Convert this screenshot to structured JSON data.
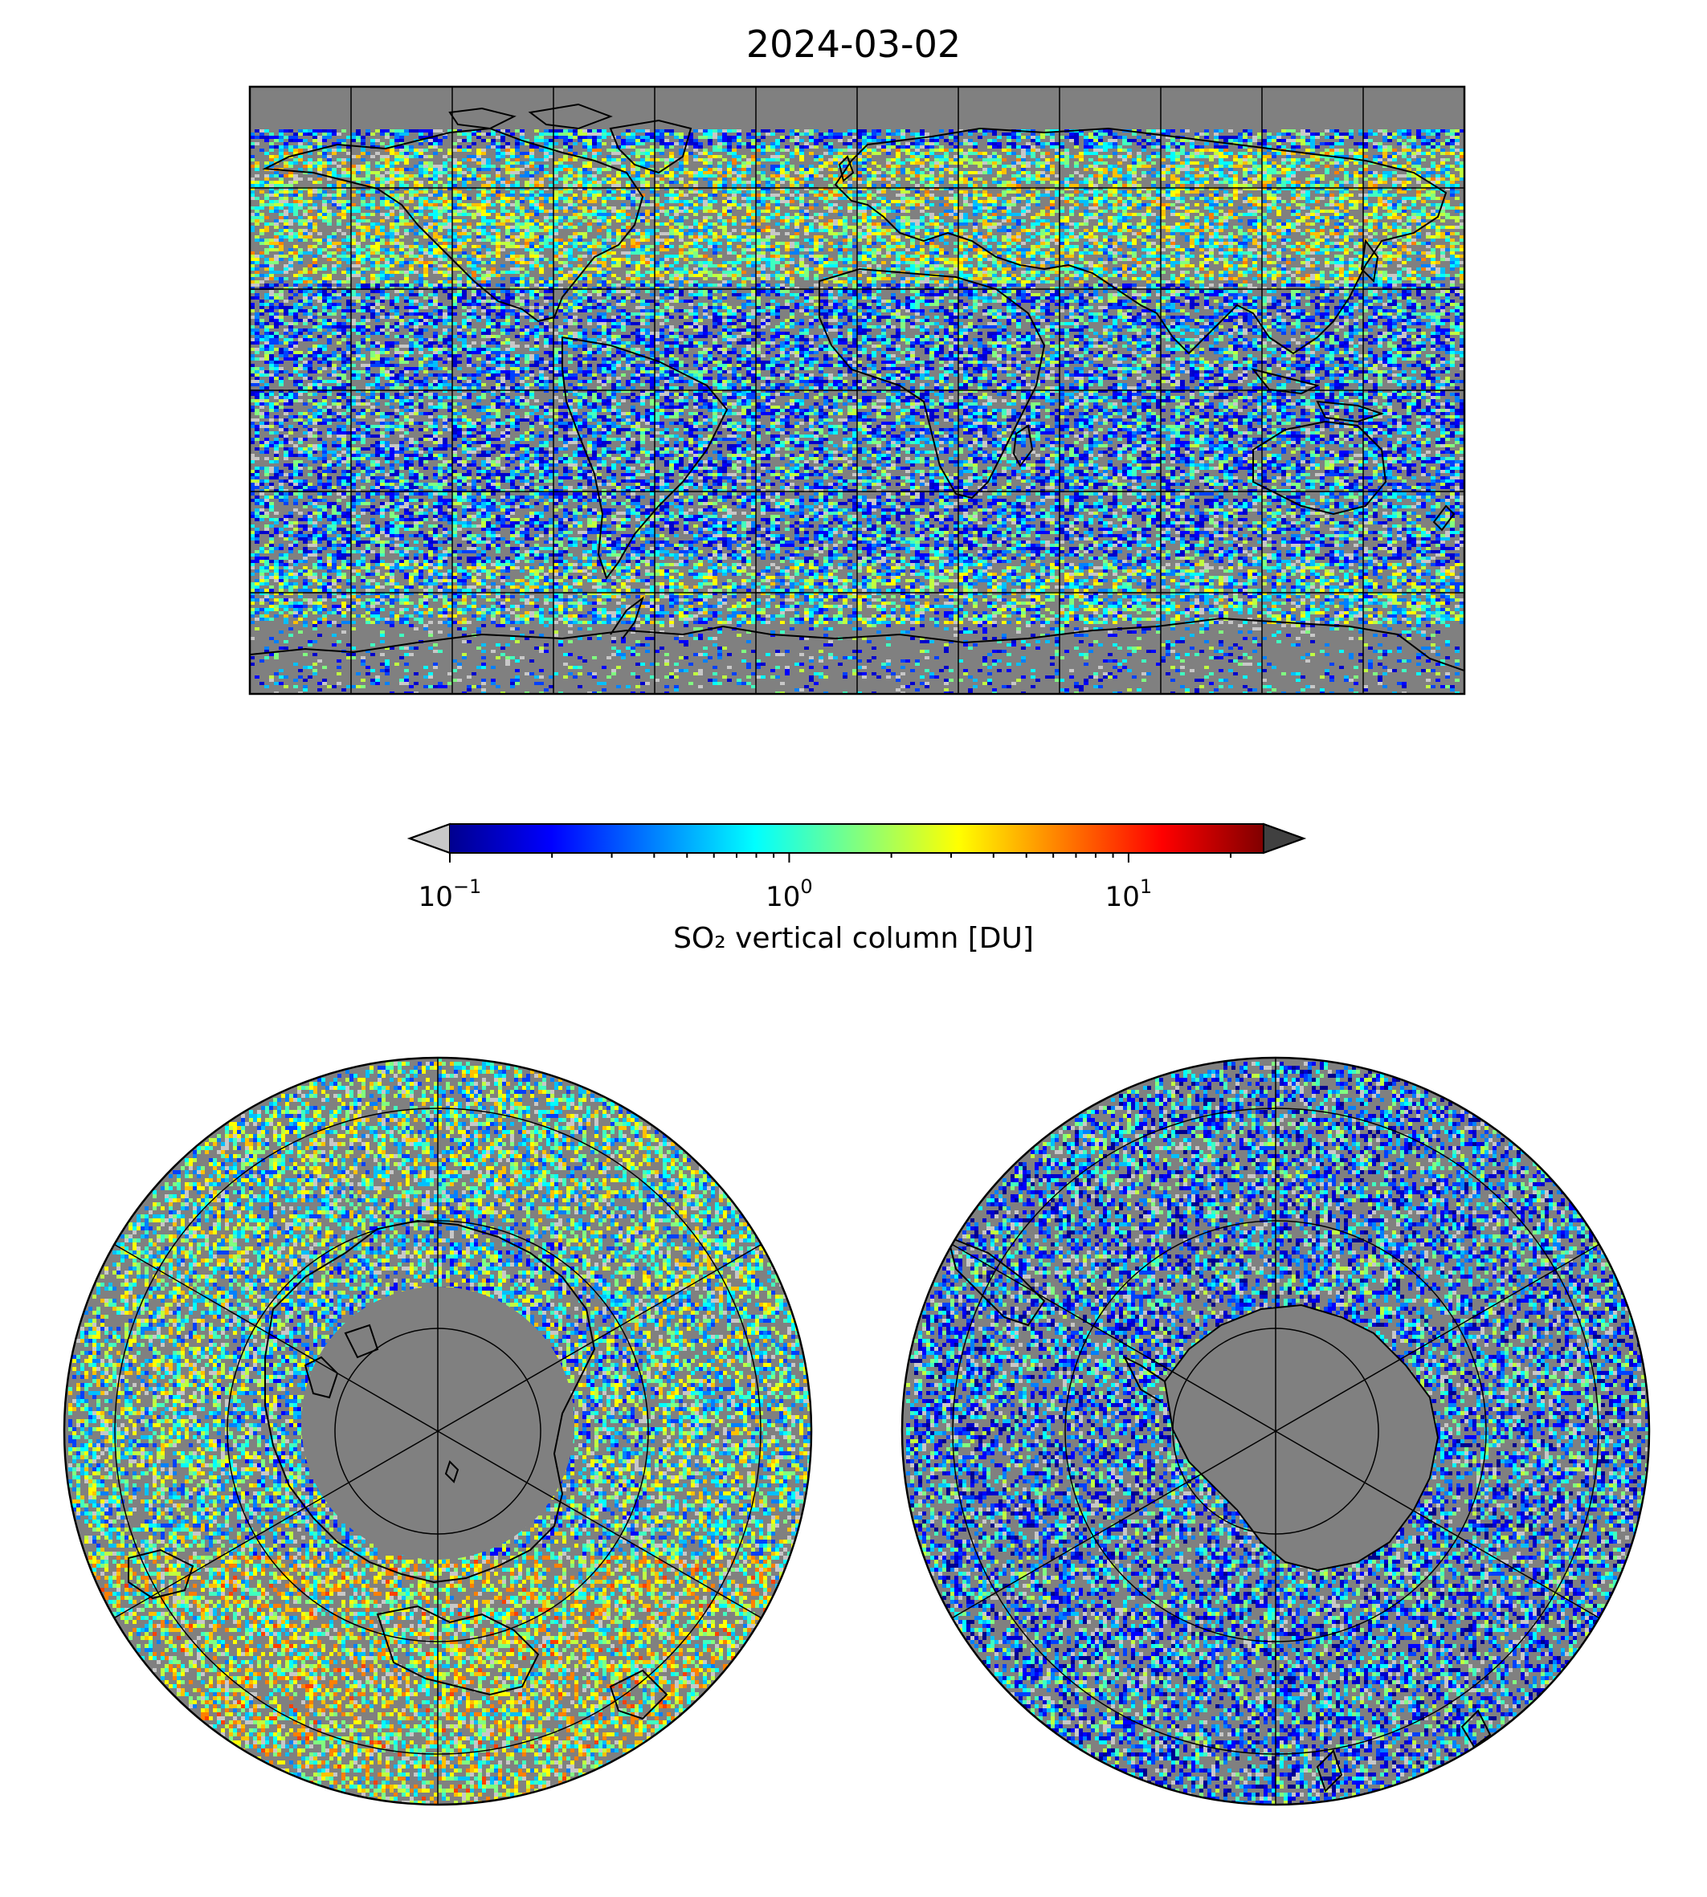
{
  "title": "2024-03-02",
  "colorbar": {
    "label": "SO₂ vertical column [DU]",
    "scale": "log",
    "range": [
      0.1,
      25
    ],
    "ticks": [
      {
        "base": "10",
        "exp": "−1",
        "value": 0.1
      },
      {
        "base": "10",
        "exp": "0",
        "value": 1
      },
      {
        "base": "10",
        "exp": "1",
        "value": 10
      }
    ],
    "colormap": [
      "#00008f",
      "#0000ff",
      "#0080ff",
      "#00ffff",
      "#80ff80",
      "#ffff00",
      "#ff8000",
      "#ff0000",
      "#800000"
    ],
    "under_color": "#c8c8c8",
    "over_color": "#404040"
  },
  "panels": [
    {
      "name": "global-map",
      "projection": "plate-carree",
      "background": "#808080"
    },
    {
      "name": "north-polar-map",
      "projection": "north-polar-stereographic",
      "background": "#808080"
    },
    {
      "name": "south-polar-map",
      "projection": "south-polar-stereographic",
      "background": "#808080"
    }
  ]
}
